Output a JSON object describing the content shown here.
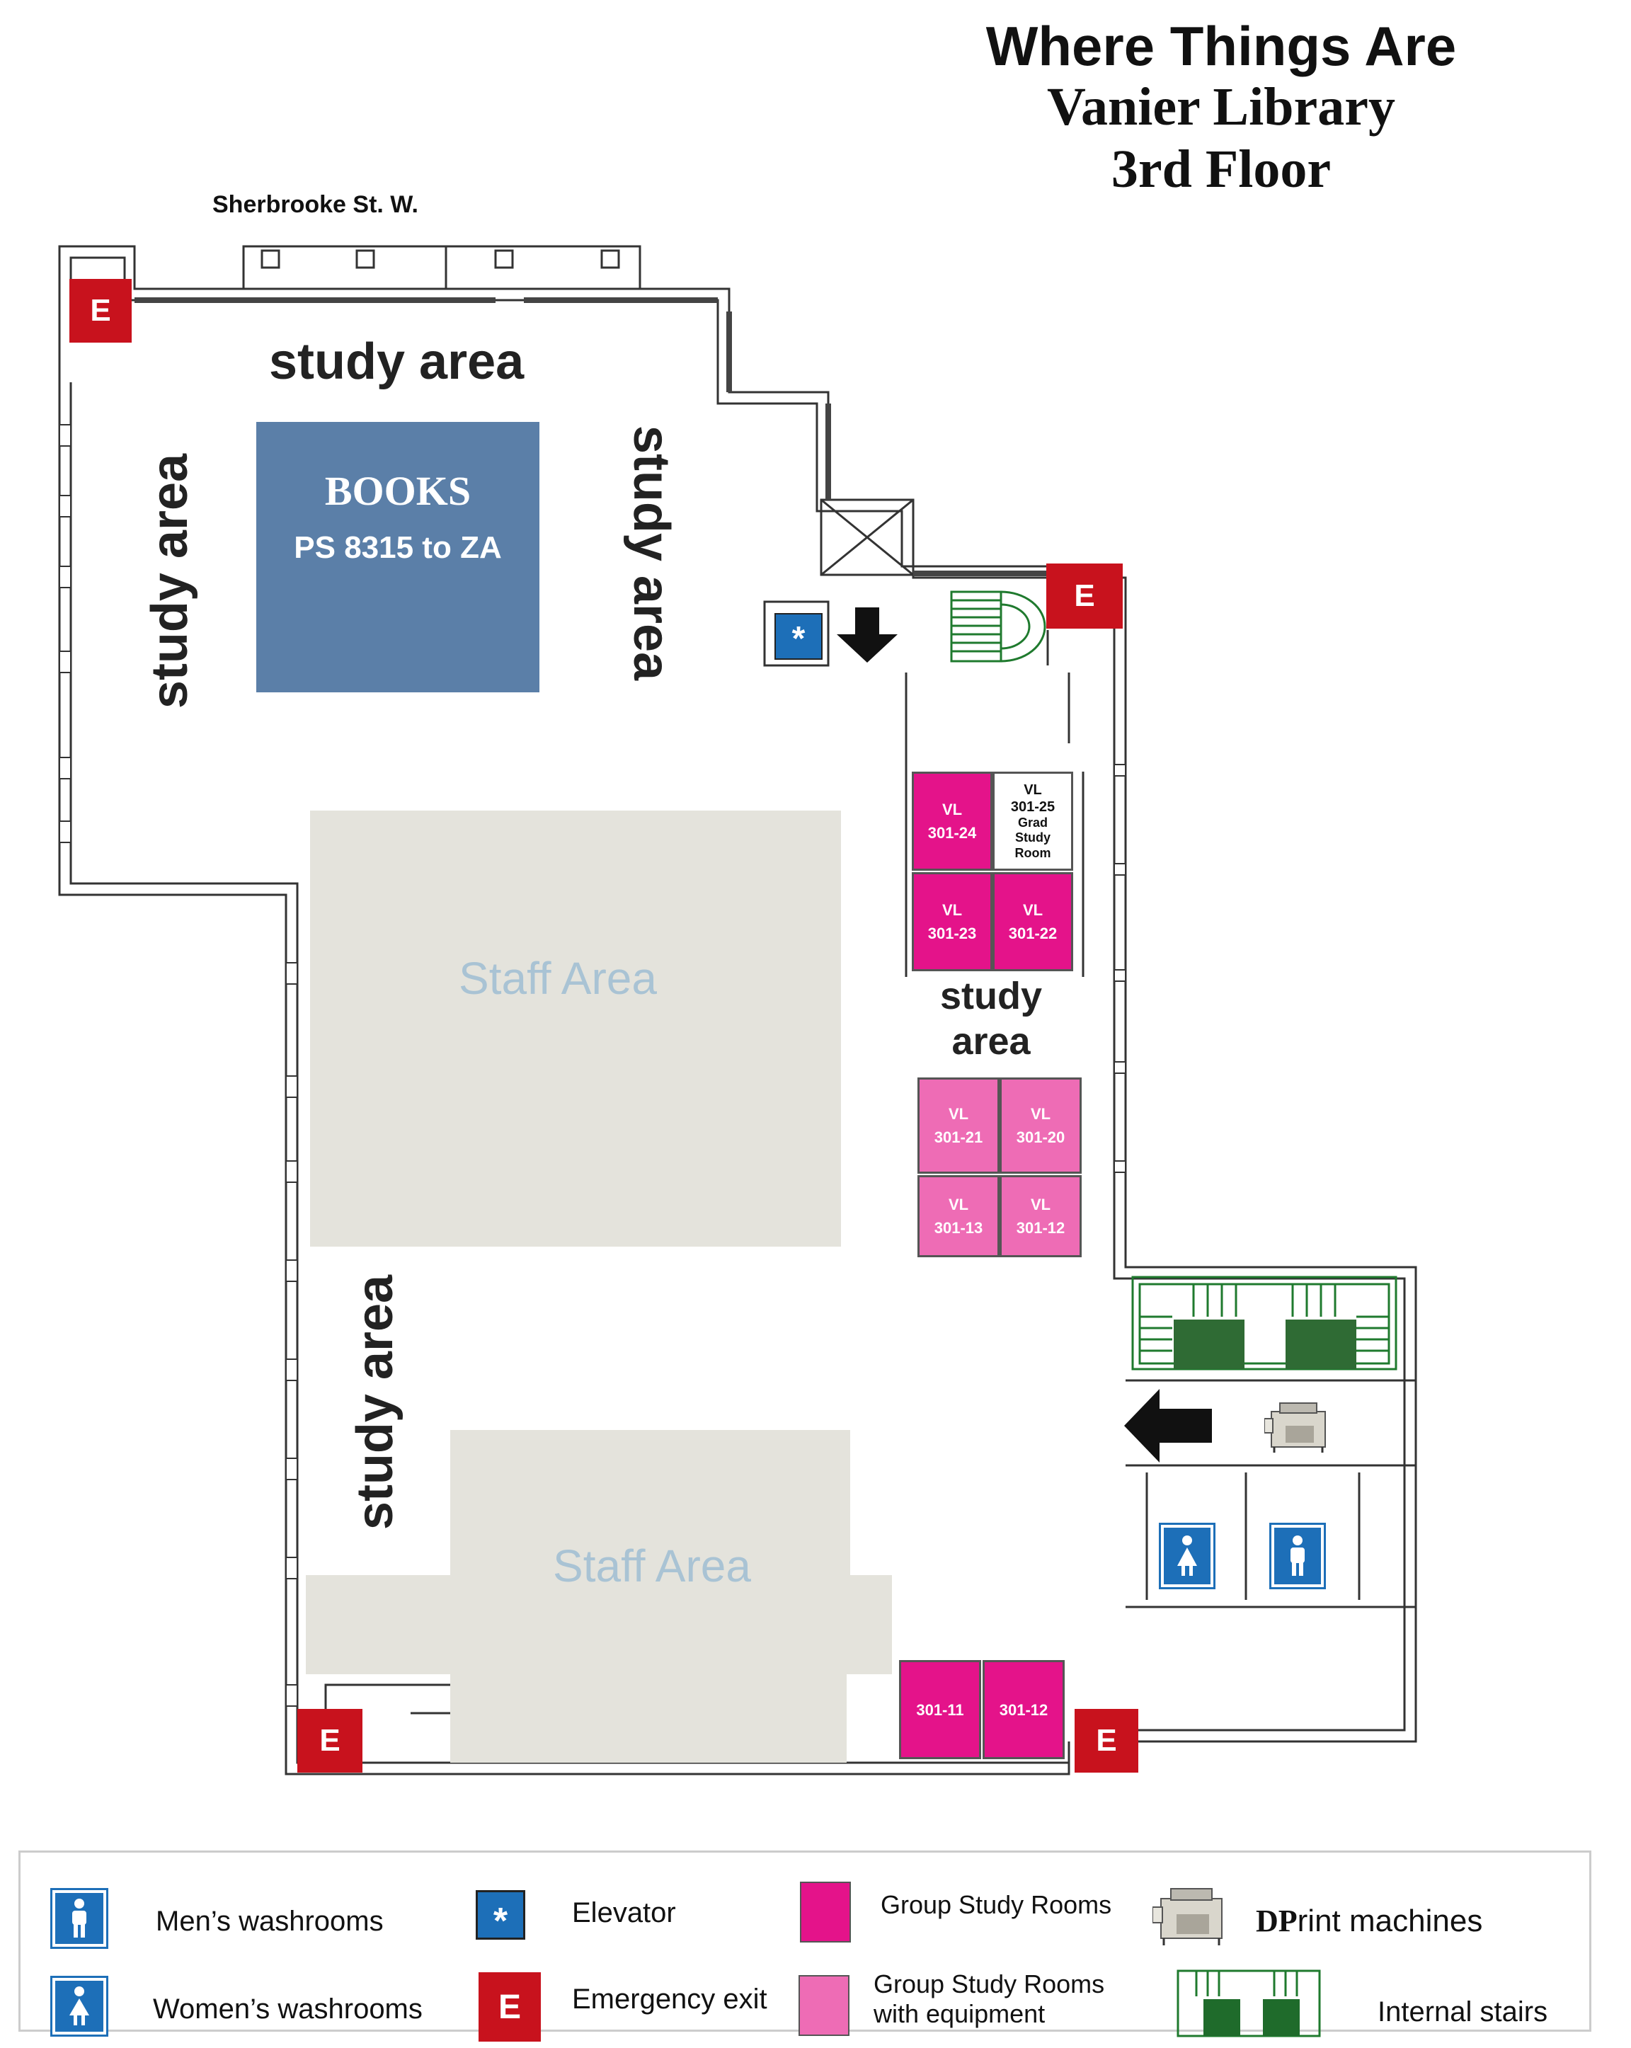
{
  "title": {
    "line1": "Where Things Are",
    "line2": "Vanier Library",
    "line3": "3rd Floor"
  },
  "street": "Sherbrooke St. W.",
  "areas": {
    "study_top": "study area",
    "study_left": "study area",
    "study_right": "study area",
    "study_bottom": "study area",
    "study_mid_line1": "study",
    "study_mid_line2": "area",
    "staff_1": "Staff Area",
    "staff_2": "Staff Area"
  },
  "books": {
    "title": "BOOKS",
    "range": "PS 8315 to ZA"
  },
  "rooms": {
    "r24": {
      "line1": "VL",
      "line2": "301-24"
    },
    "r25": {
      "line1": "VL",
      "line2": "301-25",
      "line3": "Grad",
      "line4": "Study",
      "line5": "Room"
    },
    "r23": {
      "line1": "VL",
      "line2": "301-23"
    },
    "r22": {
      "line1": "VL",
      "line2": "301-22"
    },
    "r21": {
      "line1": "VL",
      "line2": "301-21"
    },
    "r20": {
      "line1": "VL",
      "line2": "301-20"
    },
    "r13": {
      "line1": "VL",
      "line2": "301-13"
    },
    "r12": {
      "line1": "VL",
      "line2": "301-12"
    },
    "b11": {
      "line1": "301-11"
    },
    "b12": {
      "line1": "301-12"
    }
  },
  "exit_letter": "E",
  "elevator_symbol": "*",
  "legend": {
    "mens": "Men’s washrooms",
    "womens": "Women’s washrooms",
    "elevator": "Elevator",
    "exit": "Emergency exit",
    "group_rooms": "Group Study Rooms",
    "group_rooms_equip_line1": "Group Study Rooms",
    "group_rooms_equip_line2": "with equipment",
    "dprint_bold": "DP",
    "dprint_rest": "rint machines",
    "stairs": "Internal stairs"
  },
  "colors": {
    "group_room": "#e4138a",
    "group_room_equipment": "#ee6cb5",
    "exit": "#c8121d",
    "elevator": "#1d6fb8",
    "books": "#5b7fa8",
    "staff_area": "#e4e3dc",
    "stairs": "#1f7a2e"
  }
}
